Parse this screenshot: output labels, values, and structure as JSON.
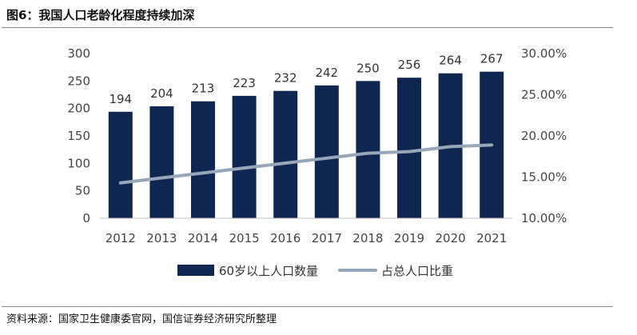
{
  "figure_title": "图6：我国人口老龄化程度持续加深",
  "source": "资料来源：国家卫生健康委官网，国信证券经济研究所整理",
  "colors": {
    "bar": "#0f2750",
    "line": "#97a6b8"
  },
  "chart_data": {
    "type": "bar",
    "categories": [
      "2012",
      "2013",
      "2014",
      "2015",
      "2016",
      "2017",
      "2018",
      "2019",
      "2020",
      "2021"
    ],
    "series": [
      {
        "name": "60岁以上人口数量",
        "type": "bar",
        "axis": "left",
        "values": [
          194,
          204,
          213,
          223,
          232,
          242,
          250,
          256,
          264,
          267
        ]
      },
      {
        "name": "占总人口比重",
        "type": "line",
        "axis": "right",
        "values": [
          14.3,
          14.9,
          15.5,
          16.1,
          16.7,
          17.3,
          17.9,
          18.1,
          18.7,
          18.9
        ]
      }
    ],
    "y_left": {
      "ylim": [
        0,
        300
      ],
      "ticks": [
        "0",
        "50",
        "100",
        "150",
        "200",
        "250",
        "300"
      ]
    },
    "y_right": {
      "ylim": [
        10,
        30
      ],
      "ticks": [
        "10.00%",
        "15.00%",
        "20.00%",
        "25.00%",
        "30.00%"
      ]
    },
    "legend": [
      "60岁以上人口数量",
      "占总人口比重"
    ],
    "legend_position": "bottom",
    "grid": false
  }
}
